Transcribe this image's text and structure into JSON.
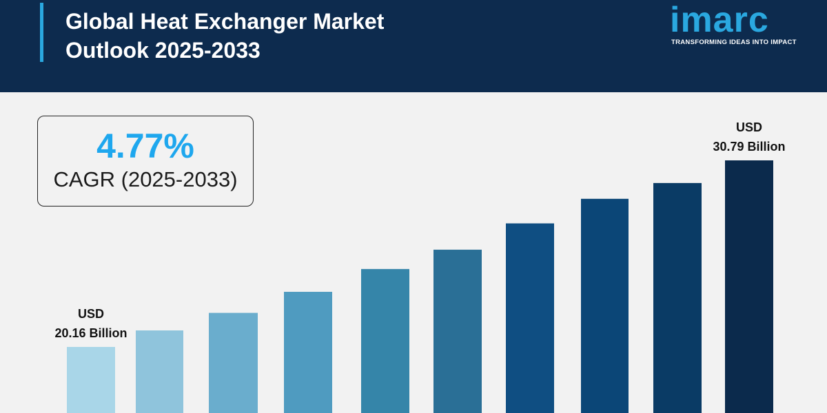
{
  "header": {
    "title_line1": "Global Heat Exchanger Market",
    "title_line2": "Outlook 2025-2033",
    "accent_color": "#2aa8e0",
    "background_color": "#0d2b4e"
  },
  "logo": {
    "wordmark": "imarc",
    "tagline": "TRANSFORMING IDEAS INTO IMPACT"
  },
  "cagr": {
    "value": "4.77%",
    "label": "CAGR (2025-2033)"
  },
  "chart_data": {
    "type": "bar",
    "categories": [
      "",
      "",
      "",
      "",
      "",
      "",
      "",
      "",
      "",
      ""
    ],
    "values": [
      20.16,
      21.1,
      22.1,
      23.3,
      24.6,
      25.7,
      27.2,
      28.6,
      29.5,
      30.79
    ],
    "colors": [
      "#a9d6e8",
      "#8fc4dc",
      "#6aadcd",
      "#4f9bc0",
      "#3585a9",
      "#2a6f96",
      "#0f4e82",
      "#0b4677",
      "#0a3b65",
      "#0b2a4c"
    ],
    "annotations": [
      {
        "bar_index": 0,
        "line1": "USD",
        "line2": "20.16 Billion"
      },
      {
        "bar_index": 9,
        "line1": "USD",
        "line2": "30.79 Billion"
      }
    ],
    "title": "",
    "xlabel": "",
    "ylabel": "",
    "grid": false,
    "axes_visible": false
  }
}
